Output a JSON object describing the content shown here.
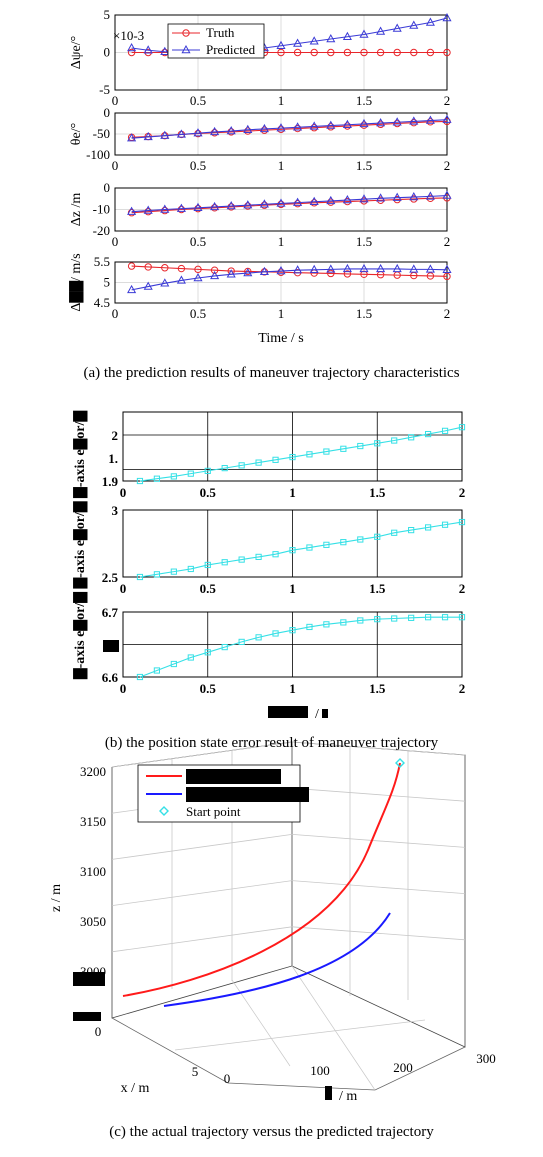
{
  "chart_data": [
    {
      "type": "line",
      "panel": "a",
      "legend_placement": "top-left",
      "grid": true,
      "xlabel": "Time / s",
      "x_ticks": [
        "0",
        "0.5",
        "1",
        "1.5",
        "2"
      ],
      "xlim": [
        0,
        2
      ],
      "subplots": [
        {
          "ylabel": "Δψe/°",
          "exponent_label": "×10-3",
          "ylim": [
            -5,
            5
          ],
          "y_ticks": [
            "5",
            "0",
            "-5"
          ],
          "x": [
            0.1,
            0.2,
            0.3,
            0.4,
            0.5,
            0.6,
            0.7,
            0.8,
            0.9,
            1.0,
            1.1,
            1.2,
            1.3,
            1.4,
            1.5,
            1.6,
            1.7,
            1.8,
            1.9,
            2.0
          ],
          "series": [
            {
              "name": "Truth",
              "color": "#e8262b",
              "marker": "circle",
              "values": [
                0,
                0,
                0,
                0,
                0,
                0,
                0,
                0,
                0,
                0,
                0,
                0,
                0,
                0,
                0,
                0,
                0,
                0,
                0,
                0
              ]
            },
            {
              "name": "Predicted",
              "color": "#3b3bd6",
              "marker": "triangle",
              "values": [
                0.6,
                0.3,
                0.1,
                0,
                0,
                0.1,
                0.2,
                0.3,
                0.6,
                0.9,
                1.2,
                1.5,
                1.8,
                2.1,
                2.4,
                2.8,
                3.2,
                3.6,
                4.0,
                4.6
              ]
            }
          ]
        },
        {
          "ylabel": "θe/°",
          "ylim": [
            -100,
            0
          ],
          "y_ticks": [
            "0",
            "-50",
            "-100"
          ],
          "x": [
            0.1,
            0.2,
            0.3,
            0.4,
            0.5,
            0.6,
            0.7,
            0.8,
            0.9,
            1.0,
            1.1,
            1.2,
            1.3,
            1.4,
            1.5,
            1.6,
            1.7,
            1.8,
            1.9,
            2.0
          ],
          "series": [
            {
              "name": "Truth",
              "color": "#e8262b",
              "marker": "circle",
              "values": [
                -58,
                -56,
                -54,
                -51,
                -49,
                -47,
                -45,
                -43,
                -41,
                -39,
                -37,
                -35,
                -33,
                -31,
                -29,
                -27,
                -25,
                -23,
                -21,
                -20
              ]
            },
            {
              "name": "Predicted",
              "color": "#3b3bd6",
              "marker": "triangle",
              "values": [
                -60,
                -57,
                -54,
                -51,
                -48,
                -45,
                -43,
                -40,
                -38,
                -36,
                -34,
                -32,
                -30,
                -28,
                -26,
                -24,
                -22,
                -20,
                -18,
                -16
              ]
            }
          ]
        },
        {
          "ylabel": "Δz /m",
          "ylim": [
            -20,
            0
          ],
          "y_ticks": [
            "0",
            "-10",
            "-20"
          ],
          "x": [
            0.1,
            0.2,
            0.3,
            0.4,
            0.5,
            0.6,
            0.7,
            0.8,
            0.9,
            1.0,
            1.1,
            1.2,
            1.3,
            1.4,
            1.5,
            1.6,
            1.7,
            1.8,
            1.9,
            2.0
          ],
          "series": [
            {
              "name": "Truth",
              "color": "#e8262b",
              "marker": "circle",
              "values": [
                -11.5,
                -11.0,
                -10.5,
                -10.0,
                -9.6,
                -9.2,
                -8.8,
                -8.4,
                -8.0,
                -7.6,
                -7.3,
                -6.9,
                -6.6,
                -6.3,
                -6.0,
                -5.7,
                -5.4,
                -5.1,
                -4.8,
                -4.6
              ]
            },
            {
              "name": "Predicted",
              "color": "#3b3bd6",
              "marker": "triangle",
              "values": [
                -11.0,
                -10.5,
                -10.0,
                -9.6,
                -9.2,
                -8.8,
                -8.4,
                -8.0,
                -7.6,
                -7.2,
                -6.8,
                -6.4,
                -6.0,
                -5.6,
                -5.2,
                -4.8,
                -4.5,
                -4.2,
                -3.9,
                -3.5
              ]
            }
          ]
        },
        {
          "ylabel": "Δ▇▇/ m/s",
          "ylim": [
            4.5,
            5.5
          ],
          "y_ticks": [
            "5.5",
            "5",
            "4.5"
          ],
          "x": [
            0.1,
            0.2,
            0.3,
            0.4,
            0.5,
            0.6,
            0.7,
            0.8,
            0.9,
            1.0,
            1.1,
            1.2,
            1.3,
            1.4,
            1.5,
            1.6,
            1.7,
            1.8,
            1.9,
            2.0
          ],
          "series": [
            {
              "name": "Truth",
              "color": "#e8262b",
              "marker": "circle",
              "values": [
                5.4,
                5.38,
                5.36,
                5.34,
                5.32,
                5.3,
                5.28,
                5.27,
                5.26,
                5.25,
                5.24,
                5.23,
                5.22,
                5.21,
                5.2,
                5.19,
                5.18,
                5.17,
                5.16,
                5.15
              ]
            },
            {
              "name": "Predicted",
              "color": "#3b3bd6",
              "marker": "triangle",
              "values": [
                4.82,
                4.9,
                4.98,
                5.05,
                5.11,
                5.16,
                5.2,
                5.23,
                5.26,
                5.28,
                5.3,
                5.31,
                5.32,
                5.33,
                5.33,
                5.33,
                5.33,
                5.32,
                5.32,
                5.31
              ]
            }
          ]
        }
      ]
    },
    {
      "type": "line",
      "panel": "b",
      "grid": true,
      "xlabel": "▇▇▇ / ▇",
      "x_ticks": [
        "0",
        "0.5",
        "1",
        "1.5",
        "2"
      ],
      "xlim": [
        0,
        2
      ],
      "ylabel": "▇-axis e▇or/▇ ▇-axis e▇or/▇ ▇-axis e▇or/▇",
      "subplots": [
        {
          "ylim": [
            1.9,
            2.05
          ],
          "y_ticks": [
            "2",
            "1.",
            "1.9"
          ],
          "color": "#35e0e6",
          "marker": "square",
          "x": [
            0.1,
            0.2,
            0.3,
            0.4,
            0.5,
            0.6,
            0.7,
            0.8,
            0.9,
            1.0,
            1.1,
            1.2,
            1.3,
            1.4,
            1.5,
            1.6,
            1.7,
            1.8,
            1.9,
            2.0
          ],
          "values": [
            1.9,
            1.905,
            1.91,
            1.916,
            1.922,
            1.928,
            1.934,
            1.94,
            1.946,
            1.952,
            1.958,
            1.964,
            1.97,
            1.976,
            1.982,
            1.988,
            1.995,
            2.002,
            2.009,
            2.017
          ]
        },
        {
          "ylim": [
            2.5,
            3.0
          ],
          "y_ticks": [
            "3",
            "2.5"
          ],
          "color": "#35e0e6",
          "marker": "square",
          "x": [
            0.1,
            0.2,
            0.3,
            0.4,
            0.5,
            0.6,
            0.7,
            0.8,
            0.9,
            1.0,
            1.1,
            1.2,
            1.3,
            1.4,
            1.5,
            1.6,
            1.7,
            1.8,
            1.9,
            2.0
          ],
          "values": [
            2.5,
            2.52,
            2.54,
            2.56,
            2.59,
            2.61,
            2.63,
            2.65,
            2.67,
            2.7,
            2.72,
            2.74,
            2.76,
            2.78,
            2.8,
            2.83,
            2.85,
            2.87,
            2.89,
            2.91
          ]
        },
        {
          "ylim": [
            6.6,
            6.7
          ],
          "y_ticks": [
            "6.7",
            "6.",
            "6.6"
          ],
          "color": "#35e0e6",
          "marker": "square",
          "x": [
            0.1,
            0.2,
            0.3,
            0.4,
            0.5,
            0.6,
            0.7,
            0.8,
            0.9,
            1.0,
            1.1,
            1.2,
            1.3,
            1.4,
            1.5,
            1.6,
            1.7,
            1.8,
            1.9,
            2.0
          ],
          "values": [
            6.6,
            6.61,
            6.62,
            6.63,
            6.638,
            6.646,
            6.654,
            6.661,
            6.667,
            6.672,
            6.677,
            6.681,
            6.684,
            6.687,
            6.689,
            6.69,
            6.691,
            6.692,
            6.692,
            6.692
          ]
        }
      ]
    },
    {
      "type": "line3d",
      "panel": "c",
      "grid": true,
      "zlabel": "z / m",
      "xlabel": "x / m",
      "ylabel": "▇ / m",
      "z_ticks": [
        "3200",
        "3150",
        "3100",
        "3050",
        "3000",
        "▇▇",
        "▇▇▇"
      ],
      "x_ticks": [
        "0",
        "5"
      ],
      "y_ticks": [
        "0",
        "100",
        "200",
        "300"
      ],
      "legend_placement": "top-left",
      "series": [
        {
          "name": "▇▇▇▇▇▇▇",
          "color": "#ff1a1a"
        },
        {
          "name": "▇▇▇▇▇▇▇▇",
          "color": "#1a1aff"
        },
        {
          "name": "Start point",
          "color": "#35e0e6",
          "marker": "diamond"
        }
      ]
    }
  ],
  "captions": {
    "a": "(a) the prediction results of maneuver trajectory characteristics",
    "b": "(b) the position state error result of maneuver trajectory",
    "c": "(c) the actual trajectory versus the predicted trajectory"
  },
  "panel_a_legend": [
    "Truth",
    "Predicted"
  ],
  "panel_a_exponent": "×10-3"
}
